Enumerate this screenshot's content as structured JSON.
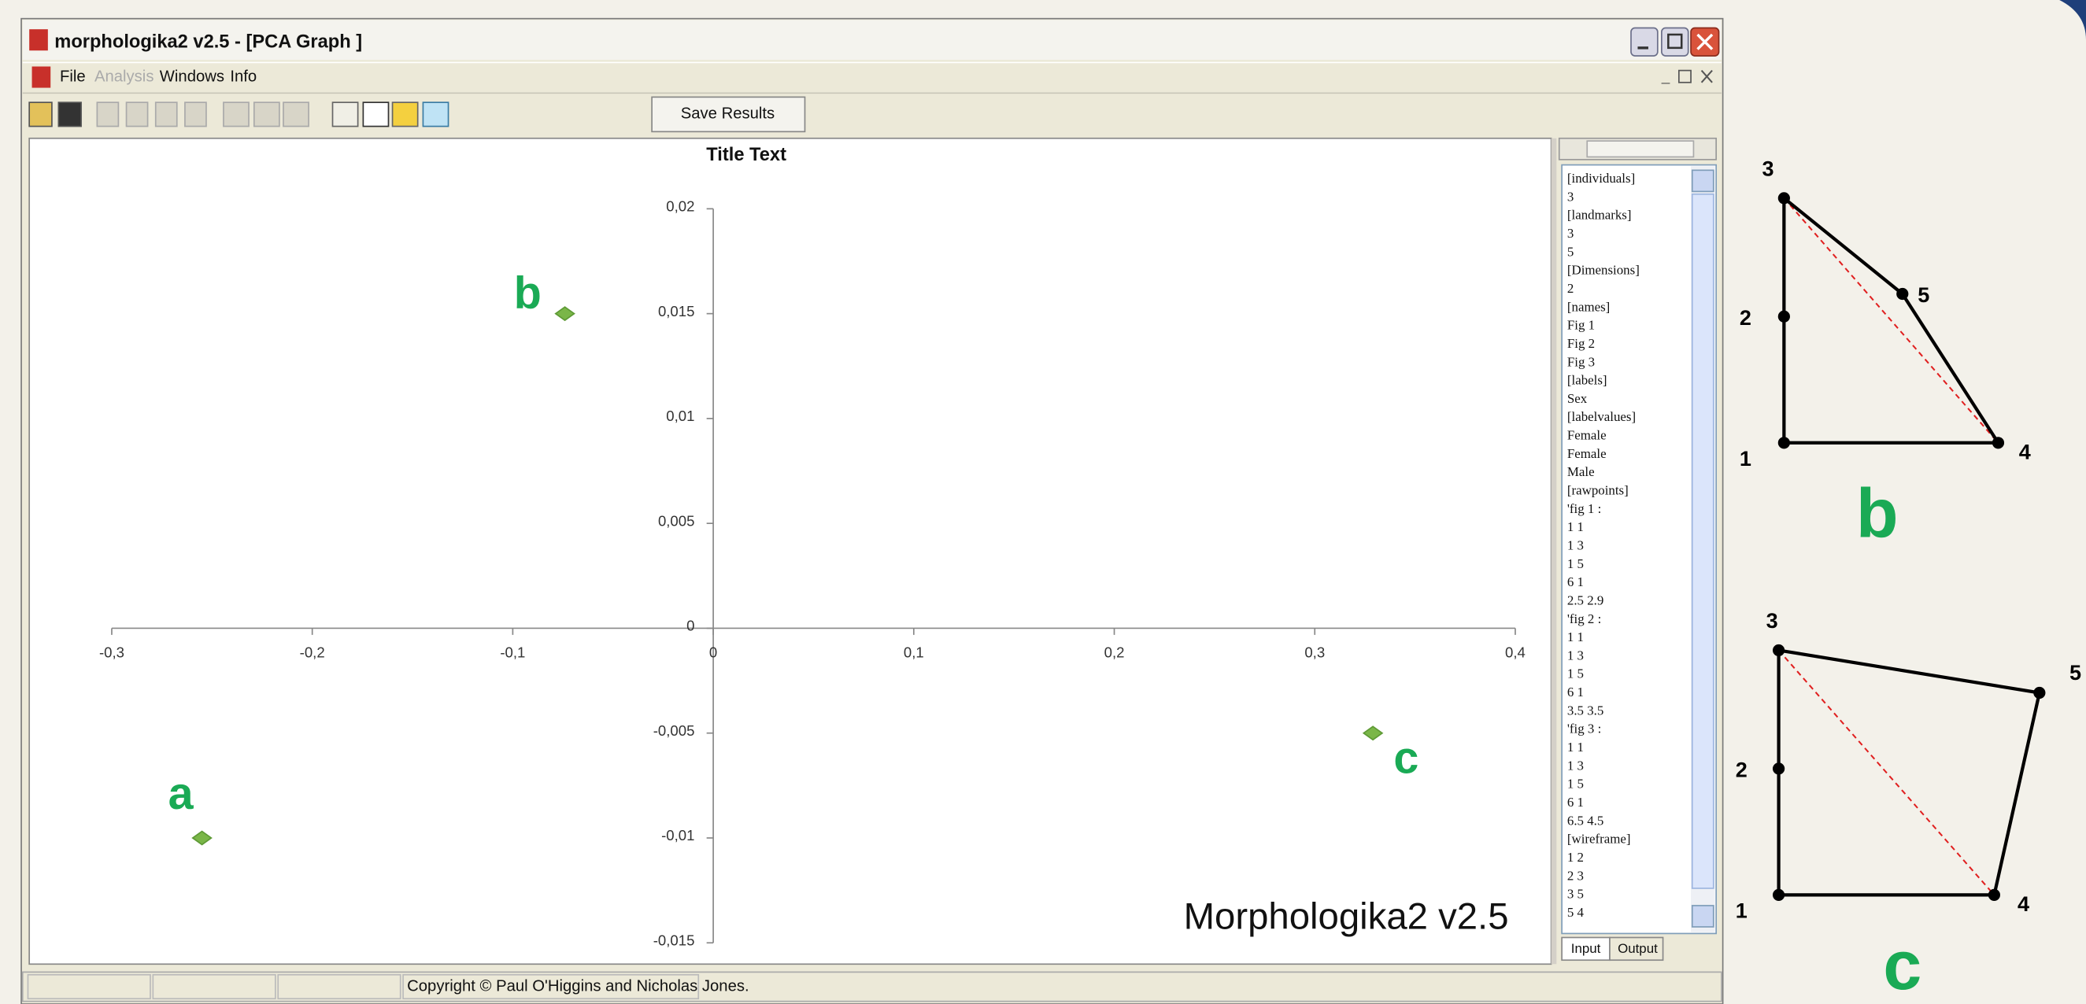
{
  "window": {
    "title": "morphologika2 v2.5 - [PCA Graph ]",
    "menu": [
      "File",
      "Analysis",
      "Windows",
      "Info"
    ],
    "button": "Save Results",
    "status": "Copyright © Paul O'Higgins and Nicholas Jones."
  },
  "chart": {
    "type": "scatter",
    "title": "Title Text",
    "xlim": [
      -0.3,
      0.4
    ],
    "xticks": [
      {
        "value": -0.3,
        "label": "-0,3"
      },
      {
        "value": -0.2,
        "label": "-0,2"
      },
      {
        "value": -0.1,
        "label": "-0,1"
      },
      0,
      {
        "value": 0.1,
        "label": "0,1"
      },
      {
        "value": 0.2,
        "label": "0,2"
      },
      {
        "value": 0.3,
        "label": "0,3"
      },
      {
        "value": 0.4,
        "label": "0,4"
      }
    ],
    "ylim": [
      -0.015,
      0.02
    ],
    "yticks": [
      {
        "value": 0.02,
        "label": "0,02"
      },
      {
        "value": 0.015,
        "label": "0,015"
      },
      {
        "value": 0.01,
        "label": "0,01"
      },
      {
        "value": 0.005,
        "label": "0,005"
      },
      0,
      {
        "value": -0.005,
        "label": "-0,005"
      },
      {
        "value": -0.01,
        "label": "-0,01"
      },
      {
        "value": -0.015,
        "label": "-0,015"
      }
    ],
    "points": [
      {
        "label": "a",
        "x": -0.255,
        "y": -0.01
      },
      {
        "label": "b",
        "x": -0.074,
        "y": 0.015
      },
      {
        "label": "c",
        "x": 0.329,
        "y": -0.005
      }
    ],
    "color": "#7ab648",
    "watermark": "Morphologika2 v2.5"
  },
  "input_panel": {
    "lines": [
      "[individuals]",
      "3",
      "[landmarks]",
      "3",
      "5",
      "[Dimensions]",
      "2",
      "[names]",
      "Fig 1",
      "Fig 2",
      "Fig 3",
      "[labels]",
      "Sex",
      "[labelvalues]",
      "Female",
      "Female",
      "Male",
      "[rawpoints]",
      "'fig 1 :",
      "1 1",
      "1 3",
      "1 5",
      "6 1",
      "2.5 2.9",
      "'fig 2 :",
      "1 1",
      "1 3",
      "1 5",
      "6 1",
      "3.5 3.5",
      "'fig 3 :",
      "1 1",
      "1 3",
      "1 5",
      "6 1",
      "6.5 4.5",
      "[wireframe]",
      "1 2",
      "2 3",
      "3 5",
      "5 4"
    ],
    "tabs": [
      "Input",
      "Output"
    ]
  },
  "diagrams": [
    {
      "caption": "b",
      "nodes": [
        "1",
        "2",
        "3",
        "4",
        "5"
      ]
    },
    {
      "caption": "c",
      "nodes": [
        "1",
        "2",
        "3",
        "4",
        "5"
      ]
    }
  ]
}
